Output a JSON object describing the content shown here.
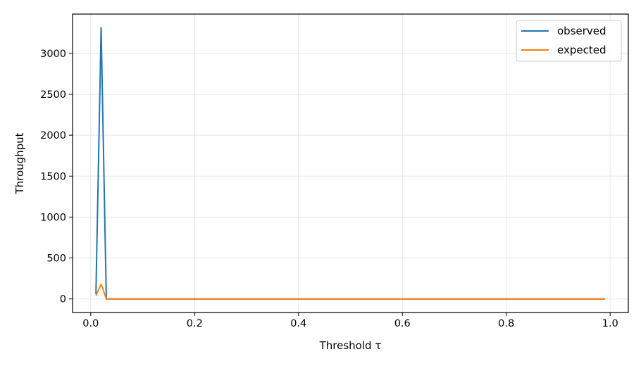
{
  "chart_data": {
    "type": "line",
    "xlabel": "Threshold τ",
    "ylabel": "Throughput",
    "xlim": [
      -0.035,
      1.035
    ],
    "ylim": [
      -166,
      3480
    ],
    "xticks": [
      0.0,
      0.2,
      0.4,
      0.6,
      0.8,
      1.0
    ],
    "xtick_labels": [
      "0.0",
      "0.2",
      "0.4",
      "0.6",
      "0.8",
      "1.0"
    ],
    "yticks": [
      0,
      500,
      1000,
      1500,
      2000,
      2500,
      3000
    ],
    "ytick_labels": [
      "0",
      "500",
      "1000",
      "1500",
      "2000",
      "2500",
      "3000"
    ],
    "grid": true,
    "legend": "top-right",
    "series": [
      {
        "name": "observed",
        "color": "#1f77b4",
        "x": [
          0.01,
          0.02,
          0.03,
          0.04,
          0.99
        ],
        "y": [
          60,
          3315,
          0,
          0,
          0
        ]
      },
      {
        "name": "expected",
        "color": "#ff7f0e",
        "x": [
          0.01,
          0.02,
          0.03,
          0.04,
          0.99
        ],
        "y": [
          40,
          180,
          0,
          0,
          0
        ]
      }
    ]
  }
}
